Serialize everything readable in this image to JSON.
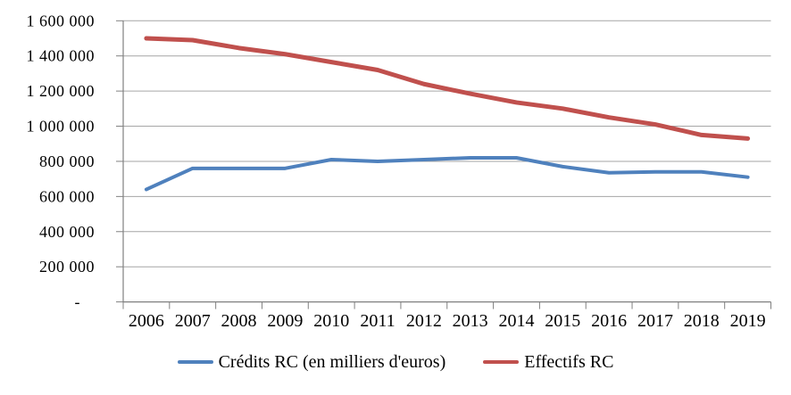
{
  "chart_data": {
    "type": "line",
    "title": "",
    "xlabel": "",
    "ylabel": "",
    "categories": [
      "2006",
      "2007",
      "2008",
      "2009",
      "2010",
      "2011",
      "2012",
      "2013",
      "2014",
      "2015",
      "2016",
      "2017",
      "2018",
      "2019"
    ],
    "series": [
      {
        "name": "Crédits RC (en milliers d'euros)",
        "color": "#4F81BD",
        "values": [
          640000,
          760000,
          760000,
          760000,
          810000,
          800000,
          810000,
          820000,
          820000,
          770000,
          735000,
          740000,
          740000,
          710000
        ]
      },
      {
        "name": "Effectifs RC",
        "color": "#C0504D",
        "values": [
          1500000,
          1490000,
          1445000,
          1410000,
          1365000,
          1320000,
          1240000,
          1185000,
          1135000,
          1100000,
          1050000,
          1010000,
          950000,
          930000
        ]
      }
    ],
    "ylim": [
      0,
      1600000
    ],
    "ytick_step": 200000,
    "ytick_labels": [
      "-",
      "200 000",
      "400 000",
      "600 000",
      "800 000",
      "1 000 000",
      "1 200 000",
      "1 400 000",
      "1 600 000"
    ],
    "grid": "horizontal-only",
    "legend_position": "bottom-center",
    "colors": {
      "gridline": "#A6A6A6",
      "axis": "#808080",
      "text": "#000000",
      "background": "#FFFFFF"
    }
  }
}
